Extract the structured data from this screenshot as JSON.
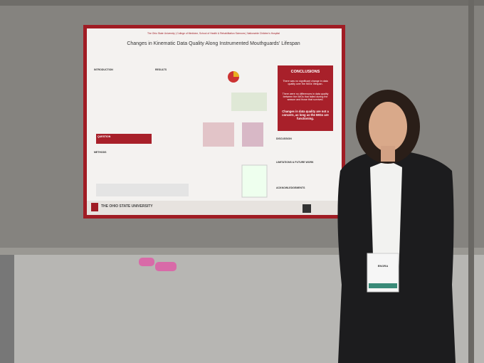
{
  "poster": {
    "header": "The Ohio State University | College of Medicine, School of Health & Rehabilitation Sciences | Nationwide Children's Hospital",
    "title": "Changes in Kinematic Data Quality Along Instrumented Mouthguards' Lifespan",
    "sections": {
      "introduction": "INTRODUCTION",
      "results": "RESULTS",
      "question": "QUESTION",
      "methods": "METHODS",
      "discussion": "DISCUSSION",
      "limitations": "LIMITATIONS & FUTURE WORK",
      "acknowledgements": "ACKNOWLEDGEMENTS"
    },
    "conclusions": {
      "heading": "CONCLUSIONS",
      "points": [
        "There was no significant change in data quality over the IMGs' lifespan.",
        "There were no differences in data quality between the IMGs that failed during the season and those that survived.",
        "Changes in data quality are not a concern, as long as the IMGs are functioning."
      ]
    },
    "footer": "THE OHIO STATE UNIVERSITY"
  },
  "badge": {
    "name": "ENORA"
  }
}
